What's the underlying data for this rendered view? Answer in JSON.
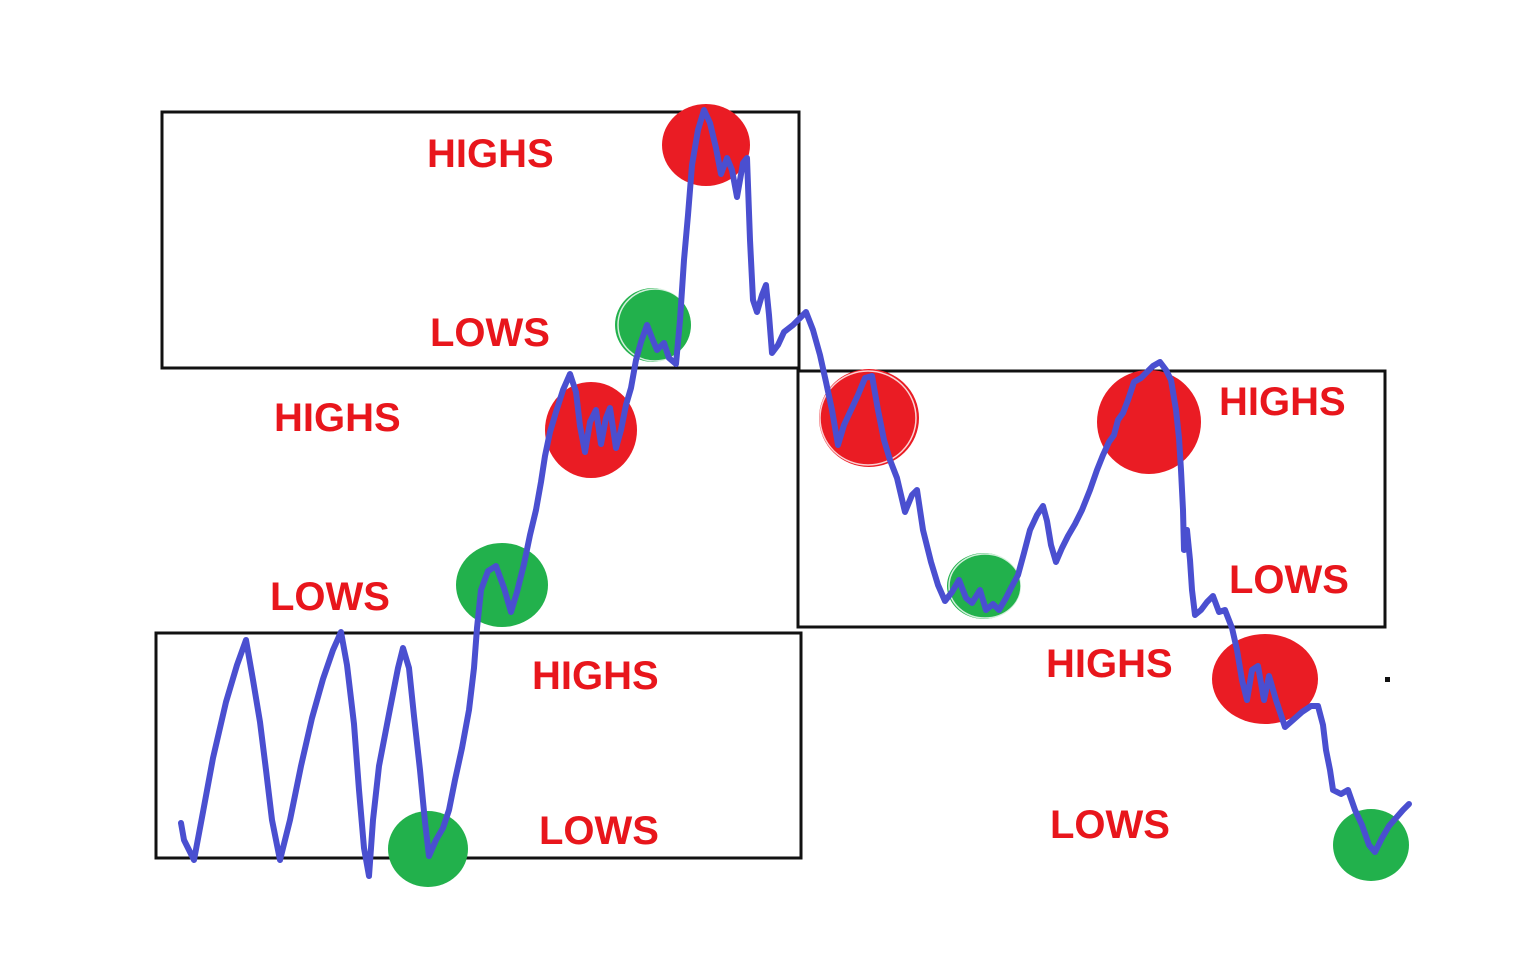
{
  "labels": {
    "top_highs": "HIGHS",
    "top_lows": "LOWS",
    "mid_left_highs": "HIGHS",
    "mid_left_lows": "LOWS",
    "bottom_highs": "HIGHS",
    "bottom_lows": "LOWS",
    "right_box_highs": "HIGHS",
    "right_box_lows": "LOWS",
    "bottom_right_highs": "HIGHS",
    "bottom_right_lows": "LOWS"
  },
  "colors": {
    "price_line": "#4a4fd0",
    "swing_high_marker": "#ea1c24",
    "swing_low_marker": "#22b14c",
    "label_text": "#e8161c",
    "zone_border": "#111111"
  }
}
